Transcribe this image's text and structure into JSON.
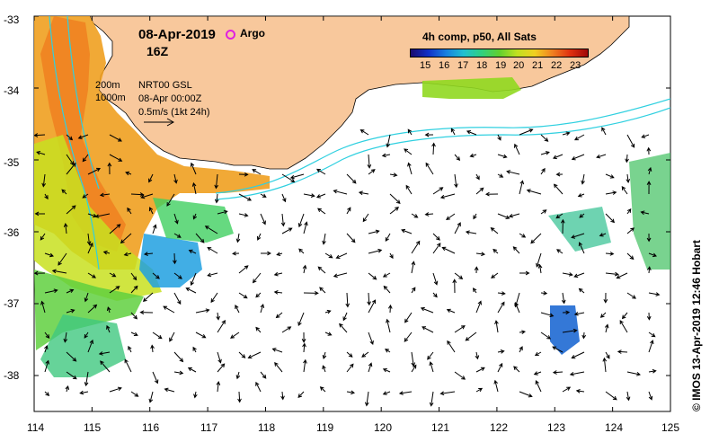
{
  "map": {
    "title_date": "08-Apr-2019",
    "title_time": "16Z",
    "argo_label": "Argo",
    "isobath_200": "200m",
    "isobath_1000": "1000m",
    "product": "NRT00 GSL",
    "product_date": "08-Apr 00:00Z",
    "current_scale": "0.5m/s (1kt 24h)",
    "credit": "© IMOS 13-Apr-2019 12:46 Hobart"
  },
  "colorbar": {
    "title": "4h comp, p50, All Sats",
    "ticks": [
      "15",
      "16",
      "17",
      "18",
      "19",
      "20",
      "21",
      "22",
      "23"
    ]
  },
  "axes": {
    "x_ticks": [
      "114",
      "115",
      "116",
      "117",
      "118",
      "119",
      "120",
      "121",
      "122",
      "123",
      "124",
      "125"
    ],
    "y_ticks": [
      "-33",
      "-34",
      "-35",
      "-36",
      "-37",
      "-38"
    ]
  },
  "colors": {
    "land": "#f8c89c",
    "ocean": "#ffffff",
    "shelf_contour": "#30d0e0",
    "argo_marker": "#e020e0"
  }
}
